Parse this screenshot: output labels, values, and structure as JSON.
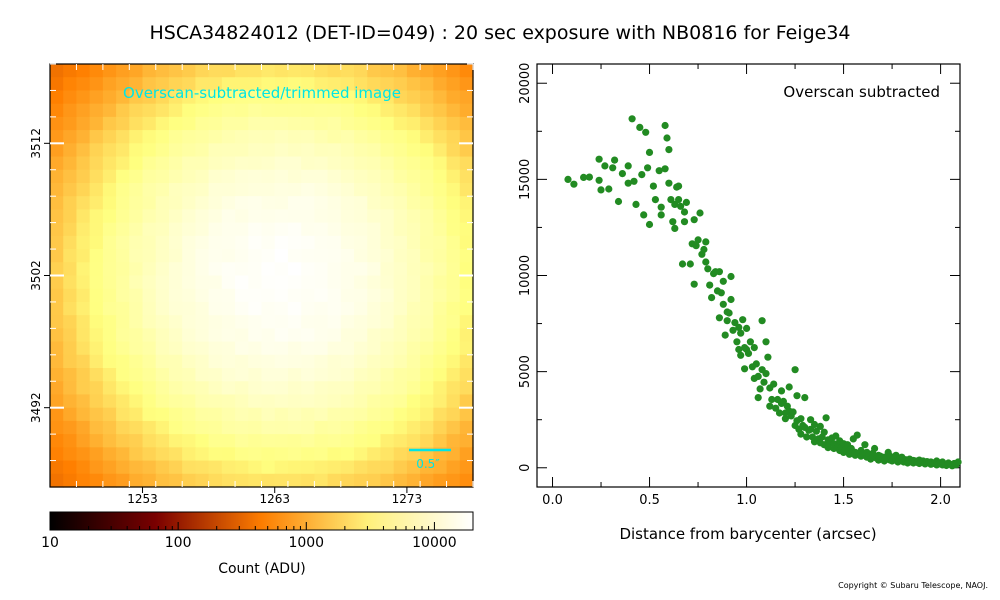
{
  "title": "HSCA34824012 (DET-ID=049) :  20 sec exposure with NB0816 for Feige34",
  "copyright": "Copyright © Subaru Telescope, NAOJ.",
  "colors": {
    "points": "#228B22",
    "label": "#00e5e5"
  },
  "image_panel": {
    "label": "Overscan-subtracted/trimmed image",
    "scalebar_label": "0.5″",
    "colorbar_label": "Count (ADU)",
    "colorbar_ticks": [
      "10",
      "100",
      "1000",
      "10000"
    ]
  },
  "chart_data": [
    {
      "type": "heatmap",
      "colormap": "afmhot",
      "scale": "log",
      "x_ticks": [
        "1253",
        "1263",
        "1273"
      ],
      "y_ticks": [
        "3512",
        "3502",
        "3492"
      ],
      "xlim": [
        1246,
        1278
      ],
      "ylim": [
        3486,
        3518
      ],
      "center": [
        1263.5,
        3502
      ],
      "colorbar_range": [
        10,
        20000
      ]
    },
    {
      "type": "scatter",
      "annotation": "Overscan subtracted",
      "xlabel": "Distance from barycenter (arcsec)",
      "ylabel": "",
      "xlim": [
        -0.08,
        2.1
      ],
      "ylim": [
        -1000,
        21000
      ],
      "x_ticks": [
        "0.0",
        "0.5",
        "1.0",
        "1.5",
        "2.0"
      ],
      "y_ticks": [
        "0",
        "5000",
        "10000",
        "15000",
        "20000"
      ],
      "series": [
        {
          "color": "#228B22",
          "points": [
            [
              0.08,
              15000
            ],
            [
              0.11,
              14750
            ],
            [
              0.16,
              15100
            ],
            [
              0.19,
              15120
            ],
            [
              0.24,
              16050
            ],
            [
              0.24,
              14950
            ],
            [
              0.25,
              14450
            ],
            [
              0.27,
              15700
            ],
            [
              0.29,
              14500
            ],
            [
              0.31,
              15600
            ],
            [
              0.32,
              16000
            ],
            [
              0.34,
              13850
            ],
            [
              0.36,
              15300
            ],
            [
              0.39,
              15700
            ],
            [
              0.41,
              18150
            ],
            [
              0.39,
              14800
            ],
            [
              0.42,
              14900
            ],
            [
              0.43,
              13700
            ],
            [
              0.45,
              17700
            ],
            [
              0.46,
              15250
            ],
            [
              0.47,
              13150
            ],
            [
              0.48,
              17450
            ],
            [
              0.49,
              15600
            ],
            [
              0.5,
              12650
            ],
            [
              0.5,
              16400
            ],
            [
              0.52,
              14650
            ],
            [
              0.53,
              13950
            ],
            [
              0.55,
              15450
            ],
            [
              0.56,
              13550
            ],
            [
              0.56,
              13150
            ],
            [
              0.58,
              17800
            ],
            [
              0.58,
              15550
            ],
            [
              0.59,
              17150
            ],
            [
              0.6,
              16550
            ],
            [
              0.6,
              14800
            ],
            [
              0.61,
              13950
            ],
            [
              0.62,
              12800
            ],
            [
              0.63,
              13700
            ],
            [
              0.63,
              12450
            ],
            [
              0.64,
              14600
            ],
            [
              0.65,
              14650
            ],
            [
              0.65,
              13950
            ],
            [
              0.66,
              13600
            ],
            [
              0.67,
              10600
            ],
            [
              0.68,
              12800
            ],
            [
              0.68,
              13300
            ],
            [
              0.69,
              13800
            ],
            [
              0.71,
              10600
            ],
            [
              0.72,
              11650
            ],
            [
              0.73,
              9550
            ],
            [
              0.73,
              12900
            ],
            [
              0.74,
              11550
            ],
            [
              0.75,
              11850
            ],
            [
              0.76,
              13250
            ],
            [
              0.77,
              11100
            ],
            [
              0.78,
              11350
            ],
            [
              0.79,
              11750
            ],
            [
              0.79,
              10700
            ],
            [
              0.8,
              10350
            ],
            [
              0.81,
              9500
            ],
            [
              0.82,
              8850
            ],
            [
              0.83,
              10100
            ],
            [
              0.84,
              10200
            ],
            [
              0.85,
              9200
            ],
            [
              0.86,
              7800
            ],
            [
              0.86,
              10200
            ],
            [
              0.87,
              9100
            ],
            [
              0.88,
              9700
            ],
            [
              0.88,
              8500
            ],
            [
              0.89,
              6900
            ],
            [
              0.9,
              8100
            ],
            [
              0.9,
              7650
            ],
            [
              0.91,
              8050
            ],
            [
              0.92,
              9950
            ],
            [
              0.92,
              8750
            ],
            [
              0.93,
              7150
            ],
            [
              0.94,
              7550
            ],
            [
              0.95,
              6550
            ],
            [
              0.96,
              7300
            ],
            [
              0.96,
              6150
            ],
            [
              0.97,
              5850
            ],
            [
              0.97,
              7000
            ],
            [
              0.98,
              7700
            ],
            [
              0.99,
              6250
            ],
            [
              0.99,
              5150
            ],
            [
              1.0,
              6150
            ],
            [
              1.0,
              7250
            ],
            [
              1.01,
              5950
            ],
            [
              1.02,
              6550
            ],
            [
              1.03,
              5250
            ],
            [
              1.04,
              4650
            ],
            [
              1.04,
              6250
            ],
            [
              1.05,
              5400
            ],
            [
              1.06,
              4750
            ],
            [
              1.06,
              3650
            ],
            [
              1.07,
              4100
            ],
            [
              1.08,
              5100
            ],
            [
              1.08,
              7650
            ],
            [
              1.09,
              4450
            ],
            [
              1.1,
              4900
            ],
            [
              1.1,
              6550
            ],
            [
              1.11,
              5750
            ],
            [
              1.12,
              4150
            ],
            [
              1.12,
              3200
            ],
            [
              1.13,
              3550
            ],
            [
              1.14,
              4350
            ],
            [
              1.15,
              3100
            ],
            [
              1.16,
              3550
            ],
            [
              1.17,
              2850
            ],
            [
              1.18,
              3350
            ],
            [
              1.18,
              4000
            ],
            [
              1.19,
              3450
            ],
            [
              1.2,
              2550
            ],
            [
              1.2,
              2850
            ],
            [
              1.21,
              3200
            ],
            [
              1.22,
              2950
            ],
            [
              1.22,
              4200
            ],
            [
              1.23,
              2700
            ],
            [
              1.24,
              2900
            ],
            [
              1.25,
              2200
            ],
            [
              1.25,
              5100
            ],
            [
              1.26,
              2450
            ],
            [
              1.26,
              3750
            ],
            [
              1.27,
              2000
            ],
            [
              1.28,
              2550
            ],
            [
              1.28,
              1750
            ],
            [
              1.29,
              2200
            ],
            [
              1.3,
              3650
            ],
            [
              1.3,
              2100
            ],
            [
              1.31,
              1600
            ],
            [
              1.32,
              1950
            ],
            [
              1.33,
              2500
            ],
            [
              1.33,
              2000
            ],
            [
              1.34,
              1600
            ],
            [
              1.35,
              2250
            ],
            [
              1.35,
              1350
            ],
            [
              1.36,
              1900
            ],
            [
              1.37,
              1500
            ],
            [
              1.38,
              2150
            ],
            [
              1.38,
              1300
            ],
            [
              1.39,
              1600
            ],
            [
              1.4,
              1850
            ],
            [
              1.4,
              1200
            ],
            [
              1.41,
              2600
            ],
            [
              1.42,
              1450
            ],
            [
              1.42,
              1050
            ],
            [
              1.43,
              1300
            ],
            [
              1.44,
              1550
            ],
            [
              1.45,
              1000
            ],
            [
              1.45,
              1250
            ],
            [
              1.46,
              1650
            ],
            [
              1.47,
              1100
            ],
            [
              1.48,
              900
            ],
            [
              1.48,
              1400
            ],
            [
              1.49,
              1050
            ],
            [
              1.5,
              1250
            ],
            [
              1.5,
              800
            ],
            [
              1.51,
              950
            ],
            [
              1.52,
              1200
            ],
            [
              1.53,
              900
            ],
            [
              1.53,
              700
            ],
            [
              1.54,
              1000
            ],
            [
              1.55,
              1500
            ],
            [
              1.56,
              800
            ],
            [
              1.56,
              650
            ],
            [
              1.57,
              1700
            ],
            [
              1.58,
              750
            ],
            [
              1.59,
              900
            ],
            [
              1.59,
              600
            ],
            [
              1.6,
              700
            ],
            [
              1.61,
              1200
            ],
            [
              1.62,
              550
            ],
            [
              1.62,
              800
            ],
            [
              1.63,
              650
            ],
            [
              1.64,
              450
            ],
            [
              1.65,
              750
            ],
            [
              1.65,
              550
            ],
            [
              1.66,
              1000
            ],
            [
              1.67,
              500
            ],
            [
              1.68,
              650
            ],
            [
              1.68,
              400
            ],
            [
              1.69,
              600
            ],
            [
              1.7,
              450
            ],
            [
              1.71,
              550
            ],
            [
              1.71,
              350
            ],
            [
              1.72,
              500
            ],
            [
              1.73,
              800
            ],
            [
              1.74,
              400
            ],
            [
              1.74,
              600
            ],
            [
              1.75,
              350
            ],
            [
              1.76,
              500
            ],
            [
              1.77,
              400
            ],
            [
              1.77,
              650
            ],
            [
              1.78,
              300
            ],
            [
              1.79,
              450
            ],
            [
              1.8,
              350
            ],
            [
              1.8,
              550
            ],
            [
              1.81,
              300
            ],
            [
              1.82,
              420
            ],
            [
              1.83,
              350
            ],
            [
              1.83,
              250
            ],
            [
              1.84,
              450
            ],
            [
              1.85,
              300
            ],
            [
              1.86,
              380
            ],
            [
              1.86,
              250
            ],
            [
              1.87,
              350
            ],
            [
              1.88,
              280
            ],
            [
              1.89,
              400
            ],
            [
              1.89,
              220
            ],
            [
              1.9,
              300
            ],
            [
              1.91,
              350
            ],
            [
              1.92,
              250
            ],
            [
              1.92,
              200
            ],
            [
              1.93,
              320
            ],
            [
              1.94,
              250
            ],
            [
              1.95,
              180
            ],
            [
              1.95,
              300
            ],
            [
              1.96,
              220
            ],
            [
              1.97,
              270
            ],
            [
              1.98,
              150
            ],
            [
              1.98,
              350
            ],
            [
              1.99,
              200
            ],
            [
              2.0,
              260
            ],
            [
              2.01,
              150
            ],
            [
              2.01,
              300
            ],
            [
              2.02,
              200
            ],
            [
              2.03,
              120
            ],
            [
              2.04,
              250
            ],
            [
              2.05,
              180
            ],
            [
              2.06,
              100
            ],
            [
              2.07,
              220
            ],
            [
              2.08,
              160
            ],
            [
              2.09,
              300
            ]
          ]
        }
      ]
    }
  ]
}
